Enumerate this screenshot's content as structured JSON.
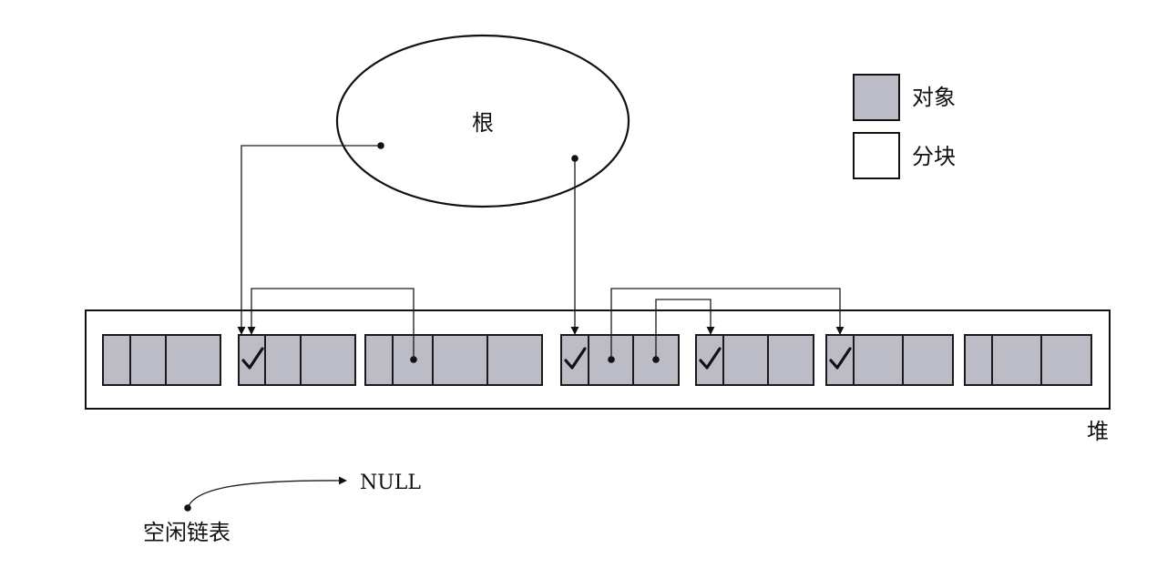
{
  "root": {
    "label": "根"
  },
  "heap": {
    "label": "堆"
  },
  "legend": {
    "object": {
      "label": "对象",
      "color": "#bcbcc6"
    },
    "chunk": {
      "label": "分块",
      "color": "#ffffff"
    }
  },
  "free_list": {
    "label": "空闲链表",
    "target": "NULL"
  },
  "blocks": [
    {
      "id": "b1",
      "cells": 3,
      "marked": false
    },
    {
      "id": "b2",
      "cells": 3,
      "marked": true
    },
    {
      "id": "b3",
      "cells": 4,
      "marked": false
    },
    {
      "id": "b4",
      "cells": 3,
      "marked": true
    },
    {
      "id": "b5",
      "cells": 3,
      "marked": true
    },
    {
      "id": "b6",
      "cells": 3,
      "marked": true
    },
    {
      "id": "b7",
      "cells": 3,
      "marked": false
    }
  ]
}
